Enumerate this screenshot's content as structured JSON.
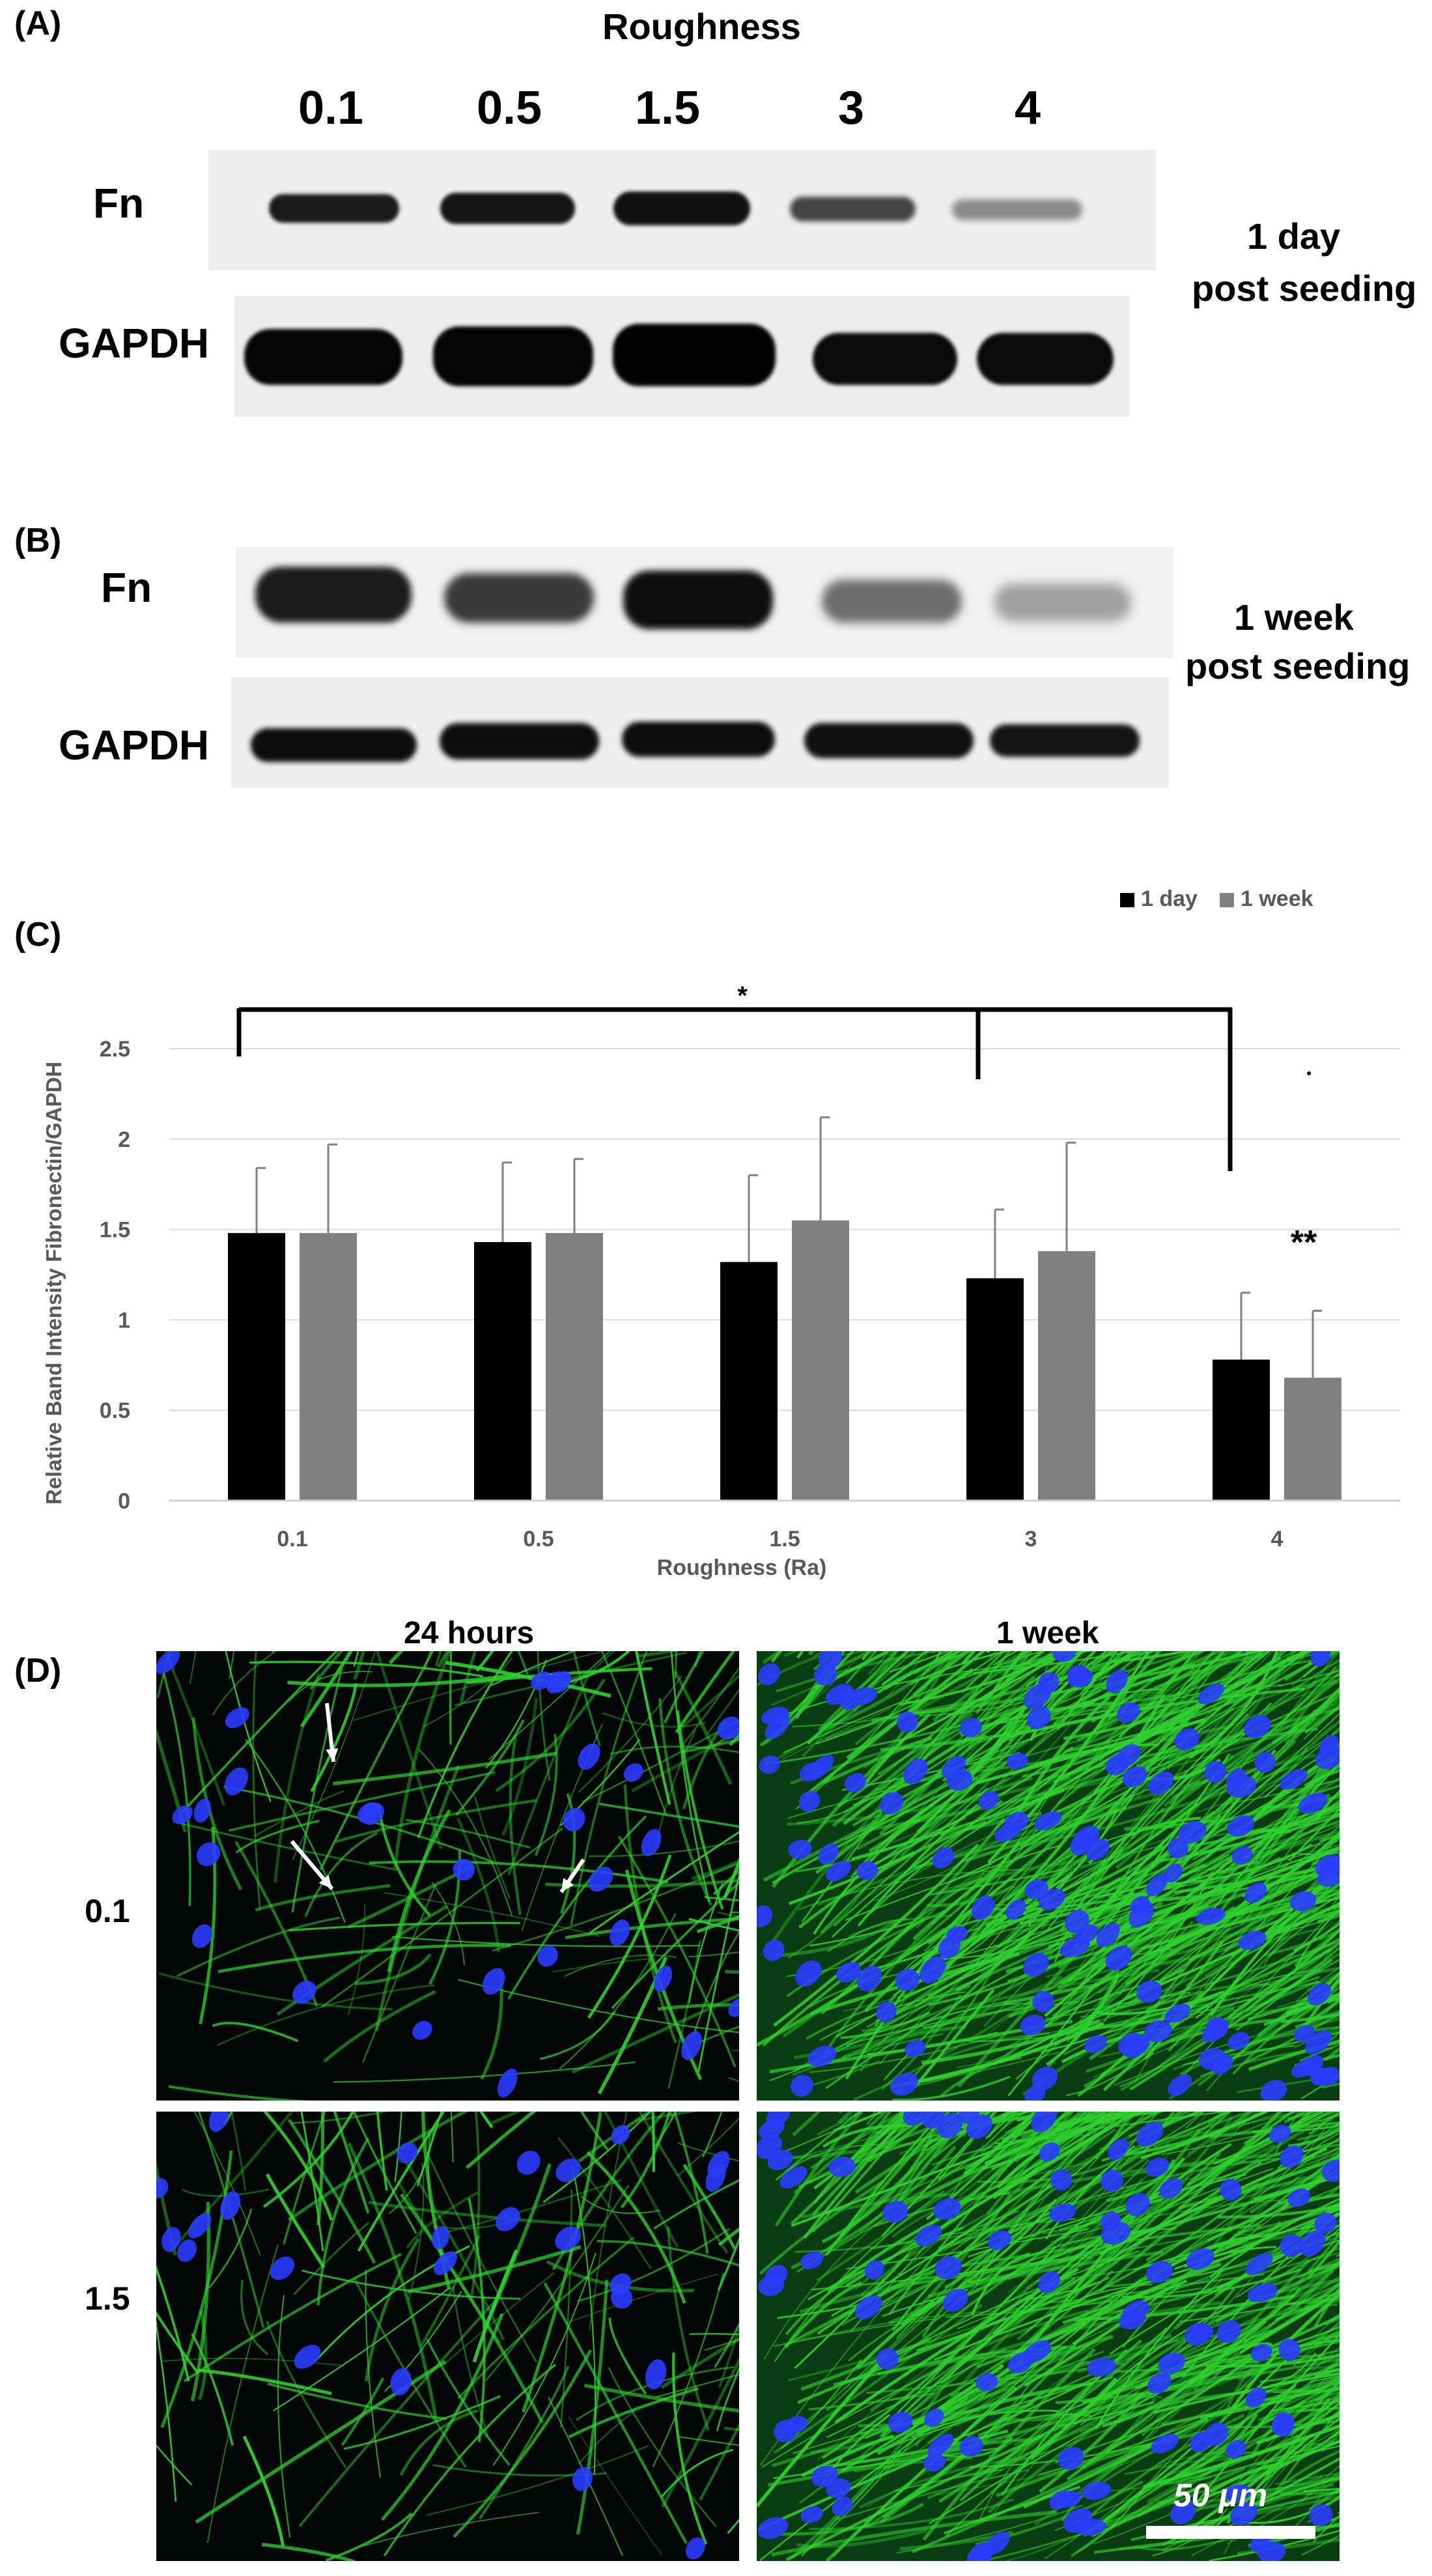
{
  "panel_a": {
    "label": "(A)",
    "header": "Roughness",
    "lane_labels": [
      "0.1",
      "0.5",
      "1.5",
      "3",
      "4"
    ],
    "row_labels": [
      "Fn",
      "GAPDH"
    ],
    "timepoint_line1": "1 day",
    "timepoint_line2": "post seeding"
  },
  "panel_b": {
    "label": "(B)",
    "row_labels": [
      "Fn",
      "GAPDH"
    ],
    "timepoint_line1": "1 week",
    "timepoint_line2": "post seeding"
  },
  "panel_c": {
    "label": "(C)",
    "significance_single": "*",
    "significance_double": "**"
  },
  "chart_data": {
    "type": "bar",
    "categories": [
      "0.1",
      "0.5",
      "1.5",
      "3",
      "4"
    ],
    "series": [
      {
        "name": "1 day",
        "values": [
          1.48,
          1.43,
          1.32,
          1.23,
          0.78
        ],
        "error": [
          0.36,
          0.44,
          0.48,
          0.38,
          0.37
        ],
        "color": "#000000"
      },
      {
        "name": "1 week",
        "values": [
          1.48,
          1.48,
          1.55,
          1.38,
          0.68
        ],
        "error": [
          0.49,
          0.41,
          0.57,
          0.6,
          0.37
        ],
        "color": "#808080"
      }
    ],
    "xlabel": "Roughness (Ra)",
    "ylabel": "Relative Band Intensity Fibronectin/GAPDH",
    "ylim": [
      0,
      2.5
    ],
    "yticks": [
      "0",
      "0.5",
      "1",
      "1.5",
      "2",
      "2.5"
    ],
    "grid": true,
    "legend": "top-right"
  },
  "panel_d": {
    "label": "(D)",
    "col_labels": [
      "24 hours",
      "1 week"
    ],
    "row_labels": [
      "0.1",
      "1.5"
    ],
    "scale_bar": "50 μm",
    "colors": {
      "actin": "#2fd12f",
      "nucleus": "#2a3cff",
      "background": "#020604"
    }
  }
}
